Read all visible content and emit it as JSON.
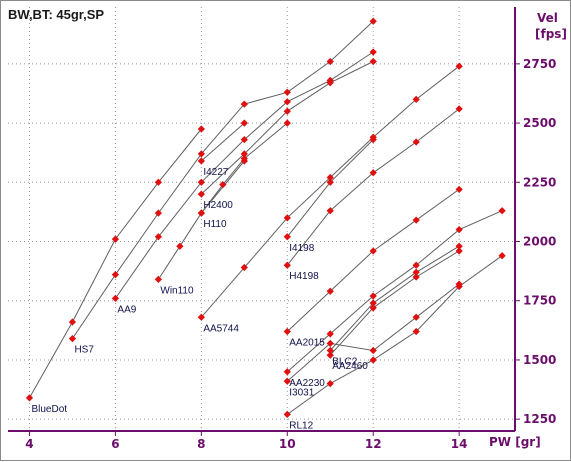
{
  "window": {
    "title": "BW,BT: 45gr,SP"
  },
  "chart_data": {
    "type": "line",
    "title": "BW,BT: 45gr,SP",
    "xlabel": "PW [gr]",
    "ylabel": "Vel [fps]",
    "xlim": [
      3.5,
      15.3
    ],
    "ylim": [
      1200,
      2990
    ],
    "xticks": [
      4,
      6,
      8,
      10,
      12,
      14
    ],
    "yticks": [
      1250,
      1500,
      1750,
      2000,
      2250,
      2500,
      2750
    ],
    "grid": true,
    "legend": "none",
    "colors": {
      "marker": "#e01010",
      "line": "#606060",
      "axis": "#6b0e6b",
      "grid": "#9a9a9a",
      "label": "#10104a"
    },
    "series": [
      {
        "name": "BlueDot",
        "points": [
          [
            4,
            1340
          ],
          [
            5,
            1660
          ],
          [
            6,
            2010
          ],
          [
            7,
            2250
          ],
          [
            8,
            2475
          ]
        ]
      },
      {
        "name": "HS7",
        "points": [
          [
            5,
            1590
          ],
          [
            6,
            1860
          ],
          [
            7,
            2120
          ],
          [
            8,
            2370
          ],
          [
            9,
            2580
          ],
          [
            10,
            2630
          ],
          [
            11,
            2760
          ],
          [
            12,
            2930
          ]
        ]
      },
      {
        "name": "AA9",
        "points": [
          [
            6,
            1760
          ],
          [
            7,
            2020
          ],
          [
            8,
            2250
          ],
          [
            9,
            2430
          ],
          [
            10,
            2590
          ],
          [
            11,
            2680
          ],
          [
            12,
            2800
          ]
        ]
      },
      {
        "name": "I4227",
        "points": [
          [
            8,
            2340
          ],
          [
            9,
            2500
          ]
        ]
      },
      {
        "name": "H2400",
        "points": [
          [
            8,
            2200
          ],
          [
            9,
            2370
          ],
          [
            10,
            2550
          ],
          [
            11,
            2670
          ],
          [
            12,
            2760
          ]
        ]
      },
      {
        "name": "H110",
        "points": [
          [
            8,
            2120
          ],
          [
            8.5,
            2240
          ],
          [
            9,
            2350
          ],
          [
            10,
            2500
          ]
        ]
      },
      {
        "name": "Win110",
        "points": [
          [
            7,
            1840
          ],
          [
            7.5,
            1980
          ],
          [
            8,
            2120
          ],
          [
            9,
            2340
          ]
        ]
      },
      {
        "name": "AA5744",
        "points": [
          [
            8,
            1680
          ],
          [
            9,
            1890
          ],
          [
            10,
            2100
          ],
          [
            11,
            2270
          ],
          [
            12,
            2440
          ],
          [
            13,
            2600
          ],
          [
            14,
            2740
          ]
        ]
      },
      {
        "name": "I4198",
        "points": [
          [
            10,
            2020
          ],
          [
            11,
            2250
          ],
          [
            12,
            2430
          ]
        ]
      },
      {
        "name": "H4198",
        "points": [
          [
            10,
            1900
          ],
          [
            11,
            2130
          ],
          [
            12,
            2290
          ],
          [
            13,
            2420
          ],
          [
            14,
            2560
          ]
        ]
      },
      {
        "name": "AA2015",
        "points": [
          [
            10,
            1620
          ],
          [
            11,
            1790
          ],
          [
            12,
            1960
          ],
          [
            13,
            2090
          ],
          [
            14,
            2220
          ]
        ]
      },
      {
        "name": "AA2460",
        "points": [
          [
            11,
            1520
          ],
          [
            12,
            1720
          ],
          [
            13,
            1850
          ],
          [
            14,
            1960
          ]
        ]
      },
      {
        "name": "BLC2",
        "points": [
          [
            11,
            1540
          ],
          [
            12,
            1740
          ],
          [
            13,
            1870
          ],
          [
            14,
            1980
          ]
        ]
      },
      {
        "name": "AA2230",
        "points": [
          [
            10,
            1450
          ],
          [
            11,
            1610
          ],
          [
            12,
            1770
          ],
          [
            13,
            1900
          ],
          [
            14,
            2050
          ],
          [
            15,
            2130
          ]
        ]
      },
      {
        "name": "I3031",
        "points": [
          [
            10,
            1410
          ],
          [
            11,
            1570
          ],
          [
            12,
            1540
          ],
          [
            13,
            1680
          ],
          [
            14,
            1820
          ]
        ]
      },
      {
        "name": "RL12",
        "points": [
          [
            10,
            1270
          ],
          [
            11,
            1400
          ],
          [
            12,
            1500
          ],
          [
            13,
            1620
          ],
          [
            14,
            1810
          ],
          [
            15,
            1940
          ]
        ]
      }
    ]
  }
}
